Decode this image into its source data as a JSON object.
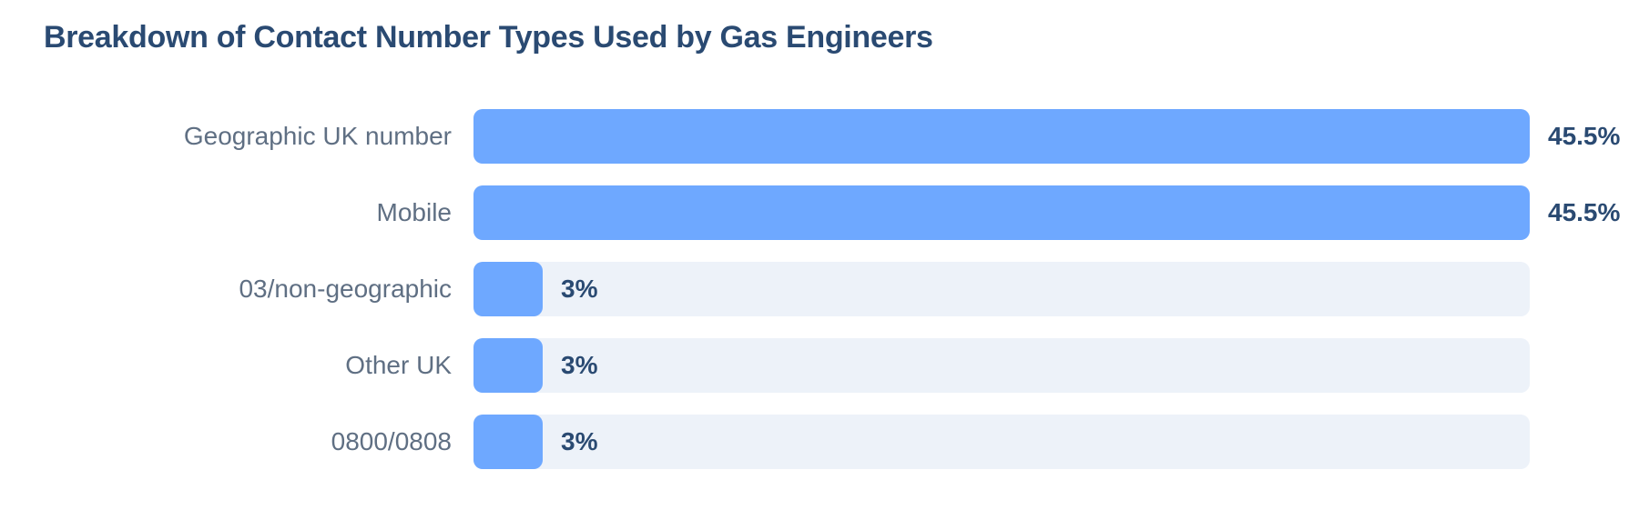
{
  "chart_data": {
    "type": "bar",
    "orientation": "horizontal",
    "title": "Breakdown of Contact Number Types Used by Gas Engineers",
    "categories": [
      "Geographic UK number",
      "Mobile",
      "03/non-geographic",
      "Other UK",
      "0800/0808"
    ],
    "values": [
      45.5,
      45.5,
      3,
      3,
      3
    ],
    "value_labels": [
      "45.5%",
      "45.5%",
      "3%",
      "3%",
      "3%"
    ],
    "xlim": [
      0,
      45.5
    ],
    "grid": false,
    "colors": {
      "bar": "#6ea8ff",
      "track": "#edf2f9",
      "title": "#2a4a72",
      "category_label": "#5f6f83",
      "value_label": "#2a4a72"
    }
  }
}
